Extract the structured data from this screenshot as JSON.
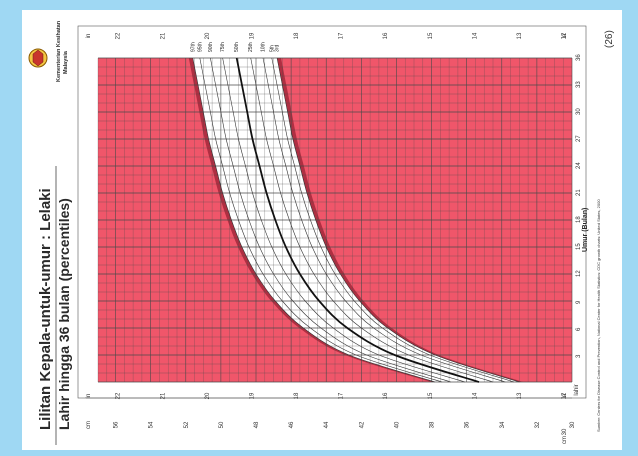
{
  "title": "Lilitan Kepala-untuk-umur : Lelaki",
  "subtitle": "Lahir hingga 36 bulan (percentiles)",
  "logo_text": [
    "Kementerian Kesihatan",
    "Malaysia"
  ],
  "page_number": "(26)",
  "source": "Sumber: Centers for Disease Control and Prevention, National Center for Health Statistics: CDC growth charts: United States, 2000",
  "colors": {
    "background": "#9fd8f3",
    "page": "#ffffff",
    "band": "#f0566a",
    "band_edge": "#7a1020",
    "grid": "#4a4a4a",
    "median_line": "#111111"
  },
  "chart_data": {
    "type": "line",
    "xlabel": "Umur (Bulan)",
    "x_unit_label": "lahir",
    "ylabel_units": [
      "cm",
      "in"
    ],
    "xlim": [
      0,
      36
    ],
    "ylim": [
      30,
      57
    ],
    "x_ticks": [
      3,
      6,
      9,
      12,
      15,
      18,
      21,
      24,
      27,
      30,
      33,
      36
    ],
    "cm_ticks": [
      30,
      32,
      34,
      36,
      38,
      40,
      42,
      44,
      46,
      48,
      50,
      52,
      54,
      56
    ],
    "in_ticks": [
      12,
      13,
      14,
      15,
      16,
      17,
      18,
      19,
      20,
      21,
      22
    ],
    "x": [
      0,
      3,
      6,
      9,
      12,
      15,
      18,
      21,
      24,
      27,
      30,
      33,
      36
    ],
    "series": [
      {
        "name": "97th",
        "values": [
          37.8,
          42.7,
          45.3,
          46.9,
          48.0,
          48.8,
          49.4,
          49.9,
          50.3,
          50.7,
          51.0,
          51.3,
          51.6
        ]
      },
      {
        "name": "95th",
        "values": [
          37.4,
          42.3,
          44.9,
          46.5,
          47.6,
          48.4,
          49.0,
          49.5,
          49.9,
          50.3,
          50.6,
          50.9,
          51.2
        ]
      },
      {
        "name": "90th",
        "values": [
          36.9,
          41.7,
          44.3,
          45.9,
          47.0,
          47.8,
          48.4,
          48.9,
          49.3,
          49.7,
          50.0,
          50.3,
          50.6
        ]
      },
      {
        "name": "75th",
        "values": [
          36.1,
          41.0,
          43.6,
          45.2,
          46.3,
          47.1,
          47.7,
          48.2,
          48.6,
          49.0,
          49.3,
          49.6,
          49.9
        ]
      },
      {
        "name": "50th",
        "values": [
          35.3,
          40.1,
          42.8,
          44.4,
          45.5,
          46.3,
          46.9,
          47.4,
          47.8,
          48.2,
          48.5,
          48.8,
          49.1
        ]
      },
      {
        "name": "25th",
        "values": [
          34.5,
          39.3,
          42.0,
          43.6,
          44.7,
          45.5,
          46.1,
          46.6,
          47.0,
          47.4,
          47.7,
          48.0,
          48.3
        ]
      },
      {
        "name": "10th",
        "values": [
          33.8,
          38.6,
          41.3,
          42.9,
          44.0,
          44.8,
          45.4,
          45.9,
          46.3,
          46.7,
          47.0,
          47.3,
          47.6
        ]
      },
      {
        "name": "5th",
        "values": [
          33.3,
          38.1,
          40.8,
          42.4,
          43.5,
          44.3,
          44.9,
          45.4,
          45.8,
          46.2,
          46.5,
          46.8,
          47.1
        ]
      },
      {
        "name": "3rd",
        "values": [
          33.0,
          37.8,
          40.5,
          42.1,
          43.2,
          44.0,
          44.6,
          45.1,
          45.5,
          45.9,
          46.2,
          46.5,
          46.8
        ]
      }
    ]
  }
}
